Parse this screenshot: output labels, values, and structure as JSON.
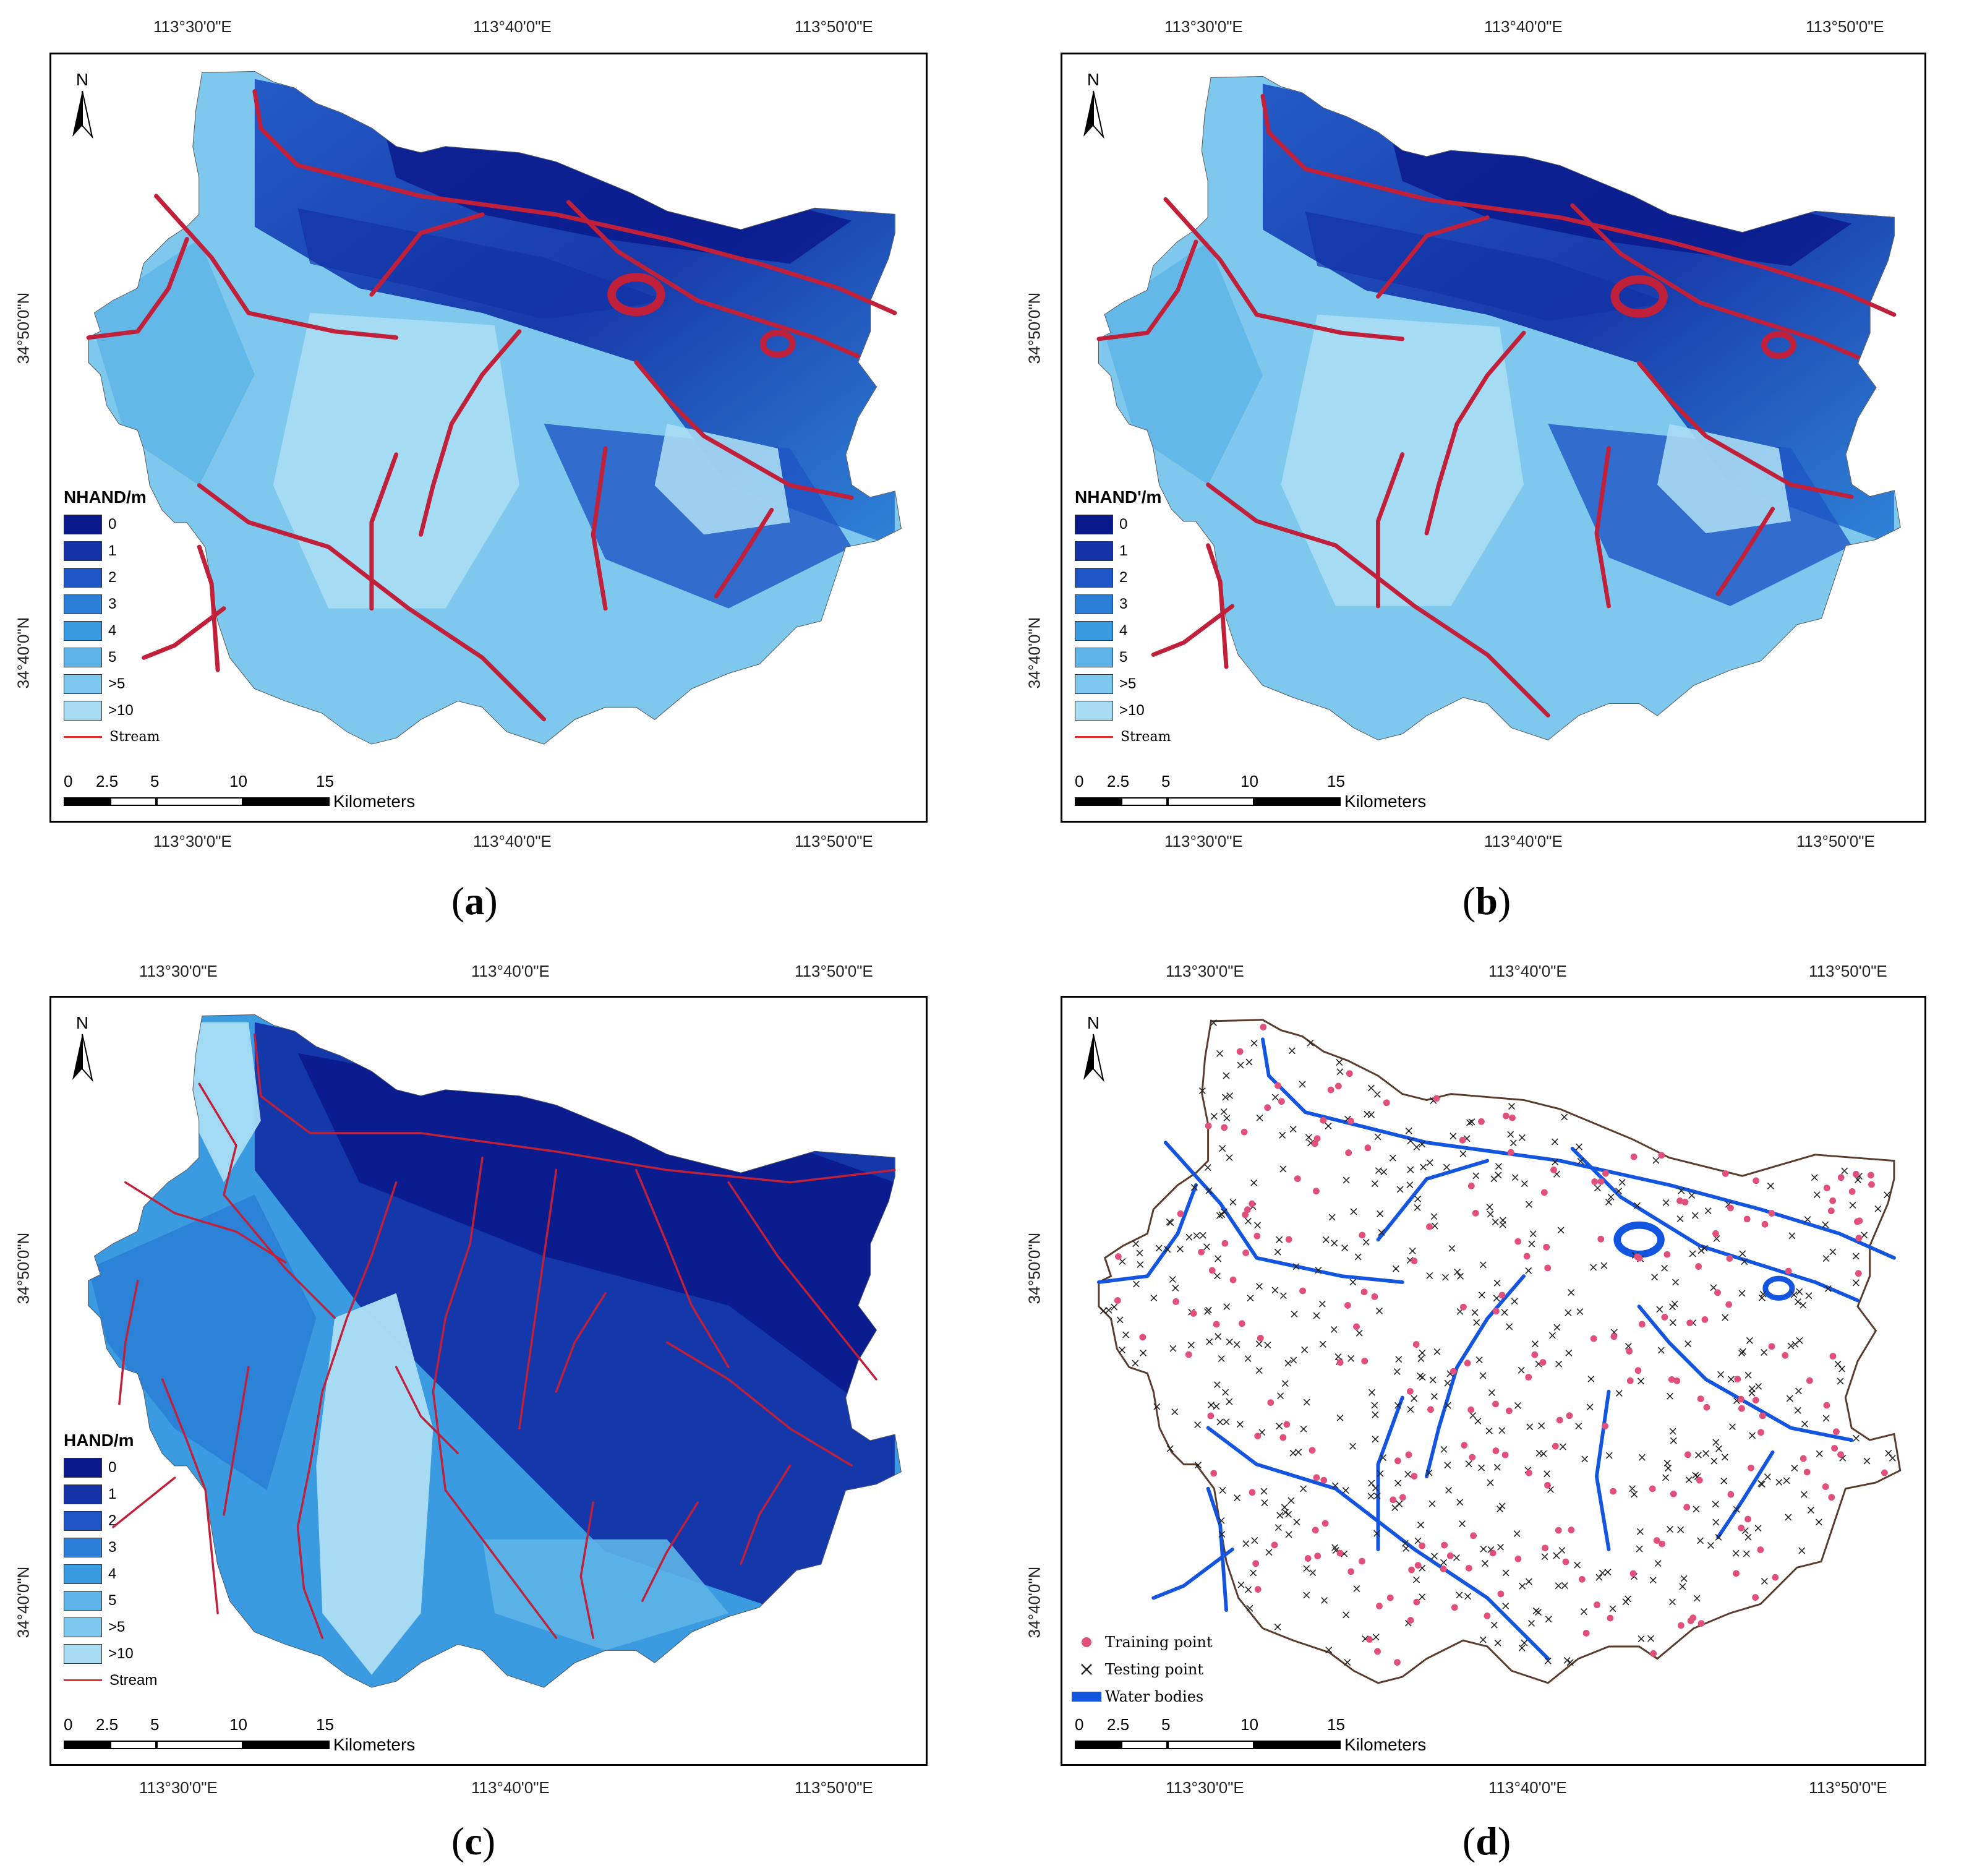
{
  "colors": {
    "class_0": "#0a1a8c",
    "class_1": "#1232a6",
    "class_2": "#1f55c4",
    "class_3": "#2b7fd6",
    "class_4": "#3b9be0",
    "class_5": "#5eb4e6",
    "class_gt5": "#7ec8ed",
    "class_gt10": "#a8dcf3",
    "stream": "#c0203a",
    "water_bodies": "#1455e0",
    "training_point": "#e0507a",
    "testing_point": "#222222"
  },
  "map_common": {
    "north_label": "N",
    "lon_labels": [
      "113°30'0\"E",
      "113°40'0\"E",
      "113°50'0\"E"
    ],
    "lat_labels": [
      "34°50'0\"N",
      "34°40'0\"N"
    ],
    "scale_numbers": [
      "0",
      "2.5",
      "5",
      "10",
      "15"
    ],
    "scale_unit": "Kilometers"
  },
  "legend_classes": [
    "0",
    "1",
    "2",
    "3",
    "4",
    "5",
    ">5",
    ">10"
  ],
  "panels": {
    "a": {
      "caption_letter": "a",
      "legend_title": "NHAND/m",
      "stream_label": "Stream"
    },
    "b": {
      "caption_letter": "b",
      "legend_title": "NHAND'/m",
      "stream_label": "Stream"
    },
    "c": {
      "caption_letter": "c",
      "legend_title": "HAND/m",
      "stream_label": "Stream"
    },
    "d": {
      "caption_letter": "d",
      "legend_items": [
        "Training point",
        "Testing point",
        "Water bodies"
      ]
    }
  }
}
